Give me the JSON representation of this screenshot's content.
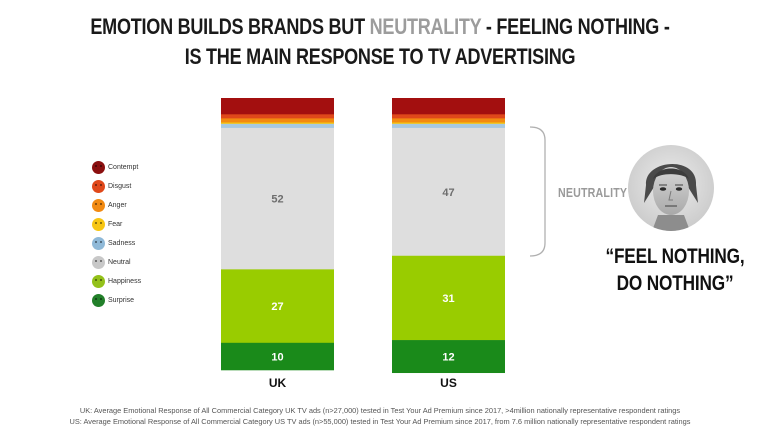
{
  "title": {
    "line1_part1": "EMOTION BUILDS BRANDS BUT ",
    "line1_highlight": "NEUTRALITY",
    "line1_part2": " - FEELING NOTHING -",
    "line2": "IS THE MAIN RESPONSE TO TV ADVERTISING"
  },
  "legend": {
    "items": [
      {
        "label": "Contempt",
        "color": "#8b0f0f",
        "icon": "contempt-face-icon"
      },
      {
        "label": "Disgust",
        "color": "#e0481a",
        "icon": "disgust-face-icon"
      },
      {
        "label": "Anger",
        "color": "#f28a12",
        "icon": "anger-face-icon"
      },
      {
        "label": "Fear",
        "color": "#f7c613",
        "icon": "fear-face-icon"
      },
      {
        "label": "Sadness",
        "color": "#8fb9d8",
        "icon": "sadness-face-icon"
      },
      {
        "label": "Neutral",
        "color": "#c8c8c8",
        "icon": "neutral-face-icon"
      },
      {
        "label": "Happiness",
        "color": "#93c11a",
        "icon": "happiness-face-icon"
      },
      {
        "label": "Surprise",
        "color": "#22802a",
        "icon": "surprise-face-icon"
      }
    ]
  },
  "chart_data": {
    "type": "bar",
    "stacked": true,
    "categories": [
      "UK",
      "US"
    ],
    "series": [
      {
        "name": "Contempt",
        "color": "#a30f0f",
        "values": [
          6,
          6
        ]
      },
      {
        "name": "Disgust",
        "color": "#e0481a",
        "values": [
          1.5,
          1.5
        ]
      },
      {
        "name": "Anger",
        "color": "#f28a12",
        "values": [
          1.5,
          1.5
        ]
      },
      {
        "name": "Fear",
        "color": "#f7c613",
        "values": [
          0.5,
          0.5
        ]
      },
      {
        "name": "Sadness",
        "color": "#a7c9e2",
        "values": [
          1.5,
          1.5
        ]
      },
      {
        "name": "Neutral",
        "color": "#dedede",
        "values": [
          52,
          47
        ]
      },
      {
        "name": "Happiness",
        "color": "#99cc00",
        "values": [
          27,
          31
        ]
      },
      {
        "name": "Surprise",
        "color": "#1a8a1a",
        "values": [
          10,
          12
        ]
      }
    ],
    "data_labels": [
      {
        "series": "Neutral",
        "values": [
          "52",
          "47"
        ]
      },
      {
        "series": "Happiness",
        "values": [
          "27",
          "31"
        ]
      },
      {
        "series": "Surprise",
        "values": [
          "10",
          "12"
        ]
      }
    ],
    "ylim": [
      0,
      100
    ],
    "xlabel": "",
    "ylabel": ""
  },
  "annotation": {
    "neutrality_label": "NEUTRALITY"
  },
  "image": {
    "icon": "neutral-woman-face-photo"
  },
  "quote": {
    "line1": "“FEEL NOTHING,",
    "line2": "DO NOTHING”"
  },
  "footnotes": {
    "uk": "UK: Average Emotional Response of All Commercial Category UK TV ads (n>27,000) tested in Test Your Ad Premium since 2017, >4million nationally representative respondent ratings",
    "us": "US: Average Emotional Response of All Commercial Category US TV ads (n>55,000) tested in Test Your Ad Premium since 2017, from 7.6 million nationally representative respondent ratings"
  }
}
